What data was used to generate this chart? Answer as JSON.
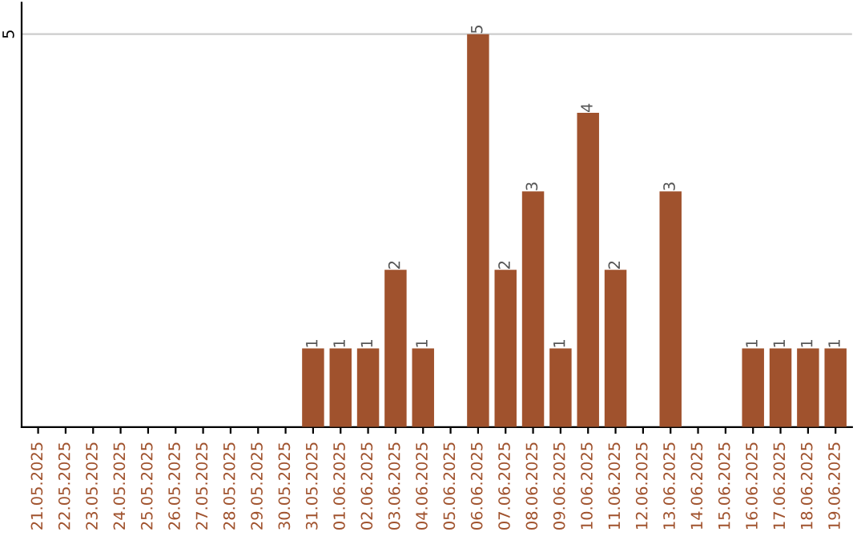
{
  "chart_data": {
    "type": "bar",
    "categories": [
      "21.05.2025",
      "22.05.2025",
      "23.05.2025",
      "24.05.2025",
      "25.05.2025",
      "26.05.2025",
      "27.05.2025",
      "28.05.2025",
      "29.05.2025",
      "30.05.2025",
      "31.05.2025",
      "01.06.2025",
      "02.06.2025",
      "03.06.2025",
      "04.06.2025",
      "05.06.2025",
      "06.06.2025",
      "07.06.2025",
      "08.06.2025",
      "09.06.2025",
      "10.06.2025",
      "11.06.2025",
      "12.06.2025",
      "13.06.2025",
      "14.06.2025",
      "15.06.2025",
      "16.06.2025",
      "17.06.2025",
      "18.06.2025",
      "19.06.2025"
    ],
    "values": [
      0,
      0,
      0,
      0,
      0,
      0,
      0,
      0,
      0,
      0,
      1,
      1,
      1,
      2,
      1,
      0,
      5,
      2,
      3,
      1,
      4,
      2,
      0,
      3,
      0,
      0,
      1,
      1,
      1,
      1
    ],
    "value_labels": [
      null,
      null,
      null,
      null,
      null,
      null,
      null,
      null,
      null,
      null,
      "1",
      "1",
      "1",
      "2",
      "1",
      null,
      "5",
      "2",
      "3",
      "1",
      "4",
      "2",
      null,
      "3",
      null,
      null,
      "1",
      "1",
      "1",
      "1"
    ],
    "color": "#a0522d",
    "ylim": [
      0,
      5.4
    ],
    "yticks": [
      5
    ],
    "grid": "y"
  }
}
